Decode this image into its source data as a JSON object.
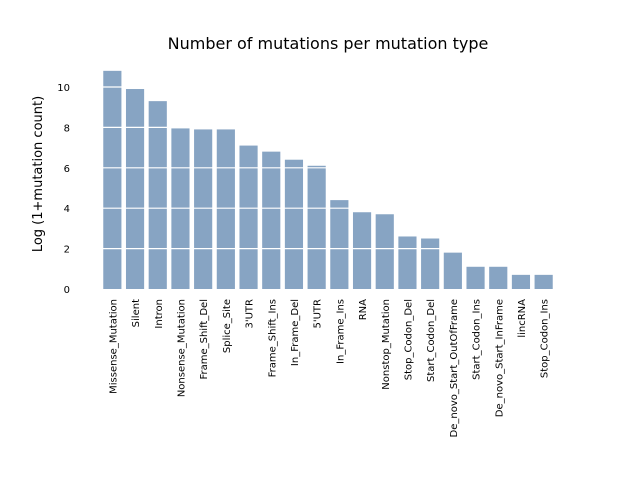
{
  "chart_data": {
    "type": "bar",
    "title": "Number of mutations per mutation type",
    "xlabel": "",
    "ylabel": "Log (1+mutation count)",
    "ylim": [
      0,
      11.3
    ],
    "yticks": [
      0,
      2,
      4,
      6,
      8,
      10
    ],
    "grid": "y (white lines drawn over bars)",
    "bar_color": "#87a4c3",
    "categories": [
      "Missense_Mutation",
      "Silent",
      "Intron",
      "Nonsense_Mutation",
      "Frame_Shift_Del",
      "Splice_Site",
      "3'UTR",
      "Frame_Shift_Ins",
      "In_Frame_Del",
      "5'UTR",
      "In_Frame_Ins",
      "RNA",
      "Nonstop_Mutation",
      "Stop_Codon_Del",
      "Start_Codon_Del",
      "De_novo_Start_OutOfFrame",
      "Start_Codon_Ins",
      "De_novo_Start_InFrame",
      "lincRNA",
      "Stop_Codon_Ins"
    ],
    "values": [
      10.8,
      9.9,
      9.3,
      7.95,
      7.9,
      7.9,
      7.1,
      6.8,
      6.4,
      6.1,
      4.4,
      3.8,
      3.7,
      2.6,
      2.5,
      1.8,
      1.1,
      1.1,
      0.7,
      0.7
    ]
  }
}
